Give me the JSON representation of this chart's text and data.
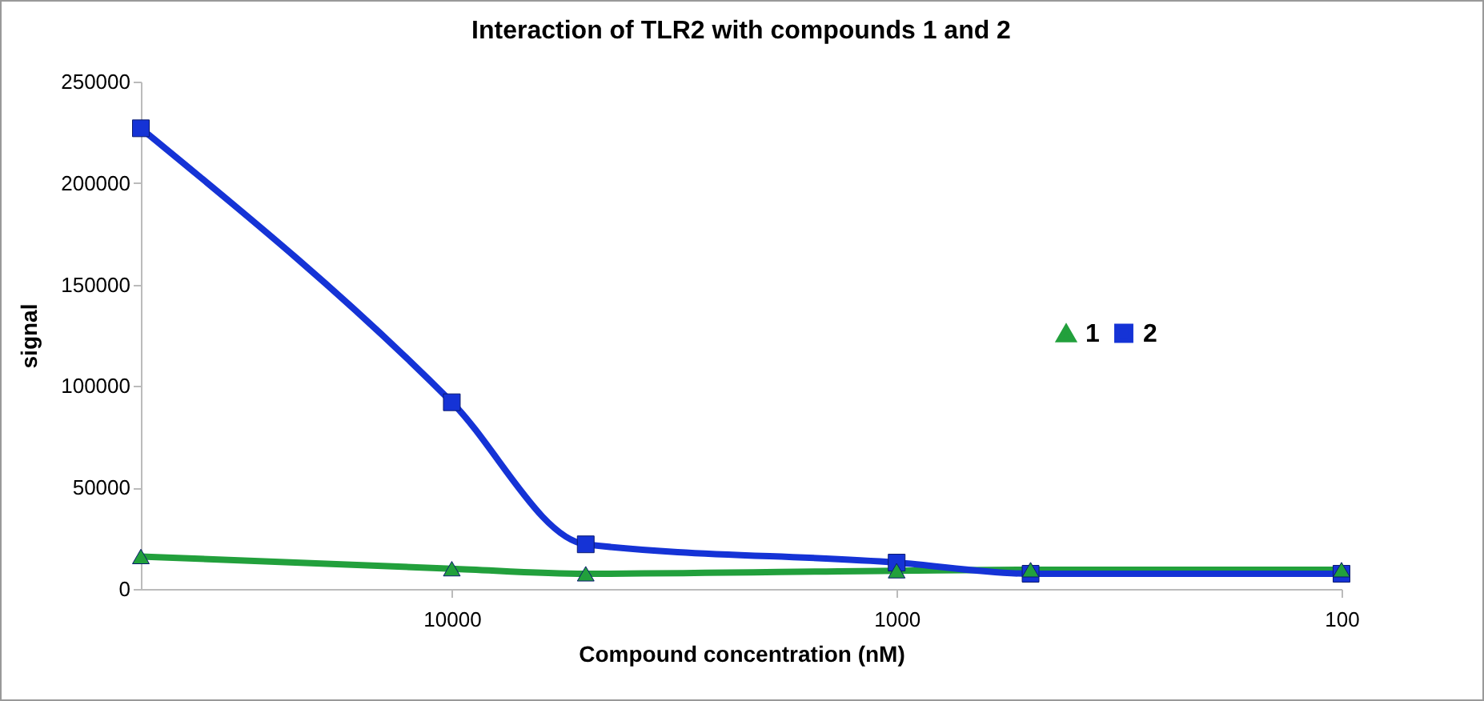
{
  "chart_data": {
    "type": "line",
    "title": "Interaction of TLR2 with compounds 1 and 2",
    "xlabel": "Compound concentration (nM)",
    "ylabel": "signal",
    "x": [
      50000,
      10000,
      5000,
      1000,
      500,
      100
    ],
    "log": "x",
    "xlim": [
      50000,
      100
    ],
    "xticks": [
      10000,
      1000,
      100
    ],
    "ylim": [
      0,
      250000
    ],
    "yticks": [
      0,
      50000,
      100000,
      150000,
      200000,
      250000
    ],
    "grid": false,
    "legend": "right",
    "series": [
      {
        "name": "1",
        "color": "#22a03c",
        "marker": "triangle",
        "values": [
          16000,
          10000,
          7500,
          9000,
          9500,
          9500
        ]
      },
      {
        "name": "2",
        "color": "#1533d6",
        "marker": "square",
        "values": [
          227000,
          92000,
          22000,
          13000,
          7500,
          7500
        ]
      }
    ]
  }
}
